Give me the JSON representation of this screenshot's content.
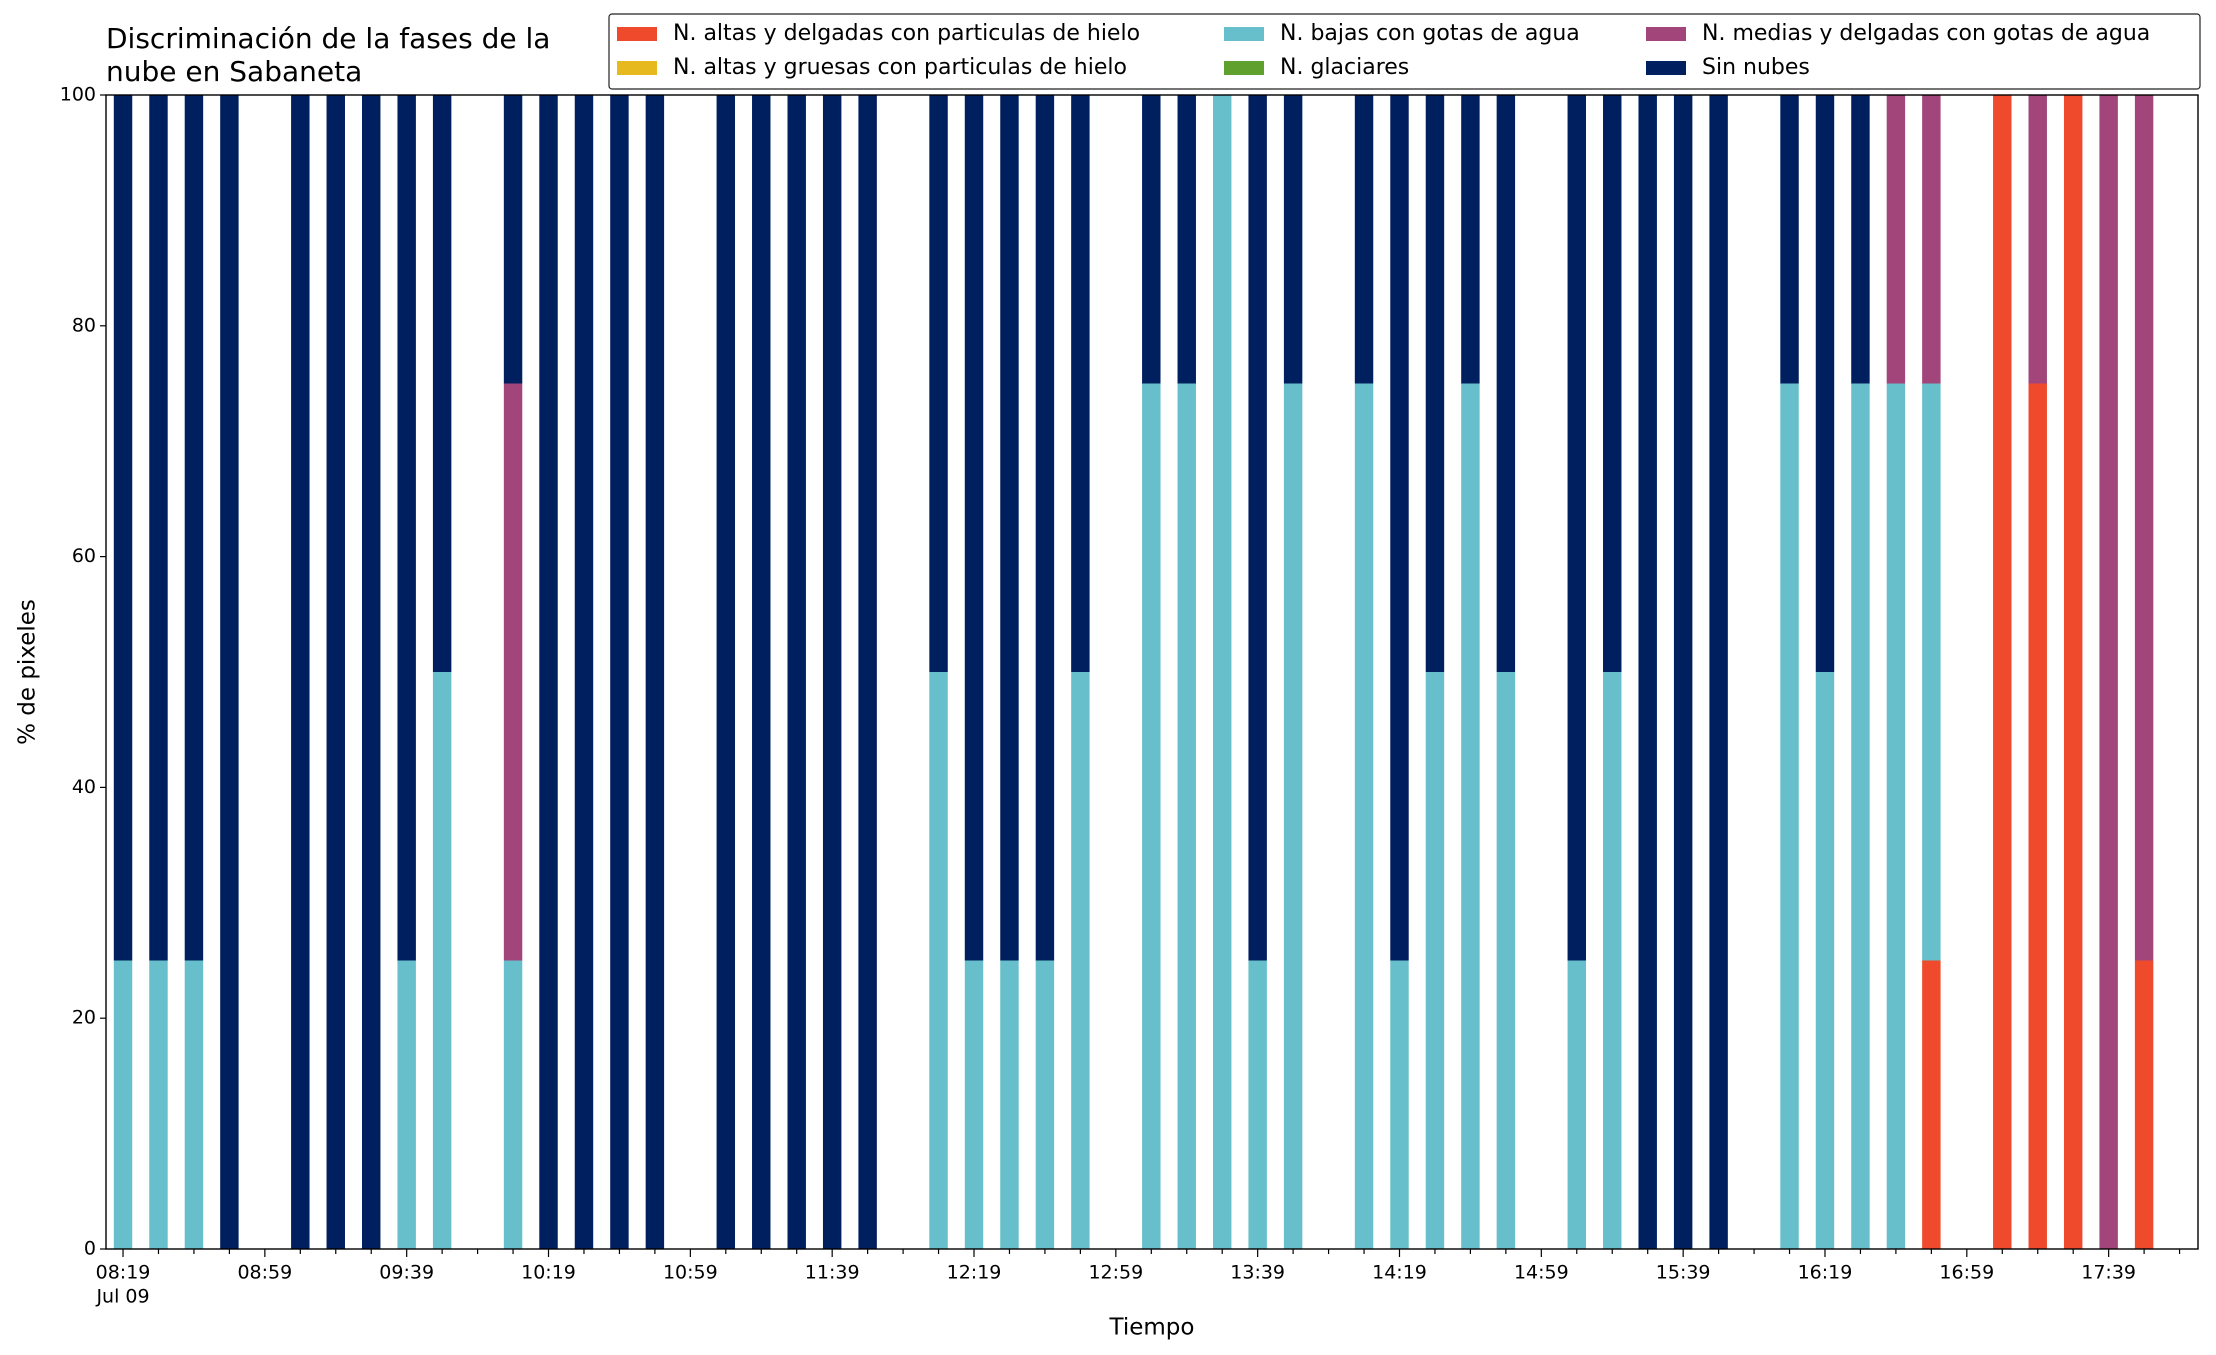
{
  "chart_data": {
    "type": "stacked_bar",
    "title": "Discriminación de la fases de la\nnube en Sabaneta",
    "x_label": "Tiempo",
    "y_label": "% de pixeles",
    "x_date_label": "Jul 09",
    "categories": [
      "08:19",
      null,
      null,
      null,
      "08:59",
      null,
      null,
      null,
      "09:39",
      null,
      null,
      null,
      "10:19",
      null,
      null,
      null,
      "10:59",
      null,
      null,
      null,
      "11:39",
      null,
      null,
      null,
      "12:19",
      null,
      null,
      null,
      "12:59",
      null,
      null,
      null,
      "13:39",
      null,
      null,
      null,
      "14:19",
      null,
      null,
      null,
      "14:59",
      null,
      null,
      null,
      "15:39",
      null,
      null,
      null,
      "16:19",
      null,
      null,
      null,
      "16:59",
      null,
      null,
      null,
      "17:39",
      null
    ],
    "ylim": [
      0,
      100
    ],
    "yticks": [
      0,
      20,
      40,
      60,
      80,
      100
    ],
    "legend": "top-right",
    "series": [
      {
        "name": "N. altas y delgadas con particulas de hielo",
        "color": "#ef4a2b",
        "values": [
          0,
          0,
          0,
          0,
          0,
          0,
          0,
          0,
          0,
          0,
          0,
          0,
          0,
          0,
          0,
          0,
          0,
          0,
          0,
          0,
          0,
          0,
          0,
          0,
          0,
          0,
          0,
          0,
          0,
          0,
          0,
          0,
          0,
          0,
          0,
          0,
          0,
          0,
          0,
          0,
          0,
          0,
          0,
          0,
          0,
          0,
          0,
          0,
          0,
          0,
          0,
          25,
          0,
          100,
          75,
          100,
          0,
          25
        ]
      },
      {
        "name": "N. altas y gruesas con particulas de hielo",
        "color": "#e6b91e",
        "values": [
          0,
          0,
          0,
          0,
          0,
          0,
          0,
          0,
          0,
          0,
          0,
          0,
          0,
          0,
          0,
          0,
          0,
          0,
          0,
          0,
          0,
          0,
          0,
          0,
          0,
          0,
          0,
          0,
          0,
          0,
          0,
          0,
          0,
          0,
          0,
          0,
          0,
          0,
          0,
          0,
          0,
          0,
          0,
          0,
          0,
          0,
          0,
          0,
          0,
          0,
          0,
          0,
          0,
          0,
          0,
          0,
          0,
          0
        ]
      },
      {
        "name": "N. bajas con gotas de agua",
        "color": "#67bfcb",
        "values": [
          25,
          25,
          25,
          0,
          0,
          0,
          0,
          0,
          25,
          50,
          0,
          25,
          0,
          0,
          0,
          0,
          0,
          0,
          0,
          0,
          0,
          0,
          0,
          50,
          25,
          25,
          25,
          50,
          0,
          75,
          75,
          100,
          25,
          75,
          0,
          75,
          25,
          50,
          75,
          50,
          0,
          25,
          50,
          0,
          0,
          0,
          0,
          75,
          50,
          75,
          75,
          50,
          0,
          0,
          0,
          0,
          0,
          0
        ]
      },
      {
        "name": "N. glaciares",
        "color": "#5fa02e",
        "values": [
          0,
          0,
          0,
          0,
          0,
          0,
          0,
          0,
          0,
          0,
          0,
          0,
          0,
          0,
          0,
          0,
          0,
          0,
          0,
          0,
          0,
          0,
          0,
          0,
          0,
          0,
          0,
          0,
          0,
          0,
          0,
          0,
          0,
          0,
          0,
          0,
          0,
          0,
          0,
          0,
          0,
          0,
          0,
          0,
          0,
          0,
          0,
          0,
          0,
          0,
          0,
          0,
          0,
          0,
          0,
          0,
          0,
          0
        ]
      },
      {
        "name": "N. medias y delgadas con gotas de agua",
        "color": "#a1457b",
        "values": [
          0,
          0,
          0,
          0,
          0,
          0,
          0,
          0,
          0,
          0,
          0,
          50,
          0,
          0,
          0,
          0,
          0,
          0,
          0,
          0,
          0,
          0,
          0,
          0,
          0,
          0,
          0,
          0,
          0,
          0,
          0,
          0,
          0,
          0,
          0,
          0,
          0,
          0,
          0,
          0,
          0,
          0,
          0,
          0,
          0,
          0,
          0,
          0,
          0,
          0,
          25,
          25,
          0,
          0,
          25,
          0,
          100,
          75
        ]
      },
      {
        "name": "Sin nubes",
        "color": "#001f5e",
        "values": [
          75,
          75,
          75,
          100,
          0,
          100,
          100,
          100,
          75,
          50,
          0,
          25,
          100,
          100,
          100,
          100,
          0,
          100,
          100,
          100,
          100,
          100,
          0,
          50,
          75,
          75,
          75,
          50,
          0,
          25,
          25,
          0,
          75,
          25,
          0,
          25,
          75,
          50,
          25,
          50,
          0,
          75,
          50,
          100,
          100,
          100,
          0,
          25,
          50,
          25,
          0,
          0,
          0,
          0,
          0,
          0,
          0,
          0
        ]
      }
    ]
  }
}
